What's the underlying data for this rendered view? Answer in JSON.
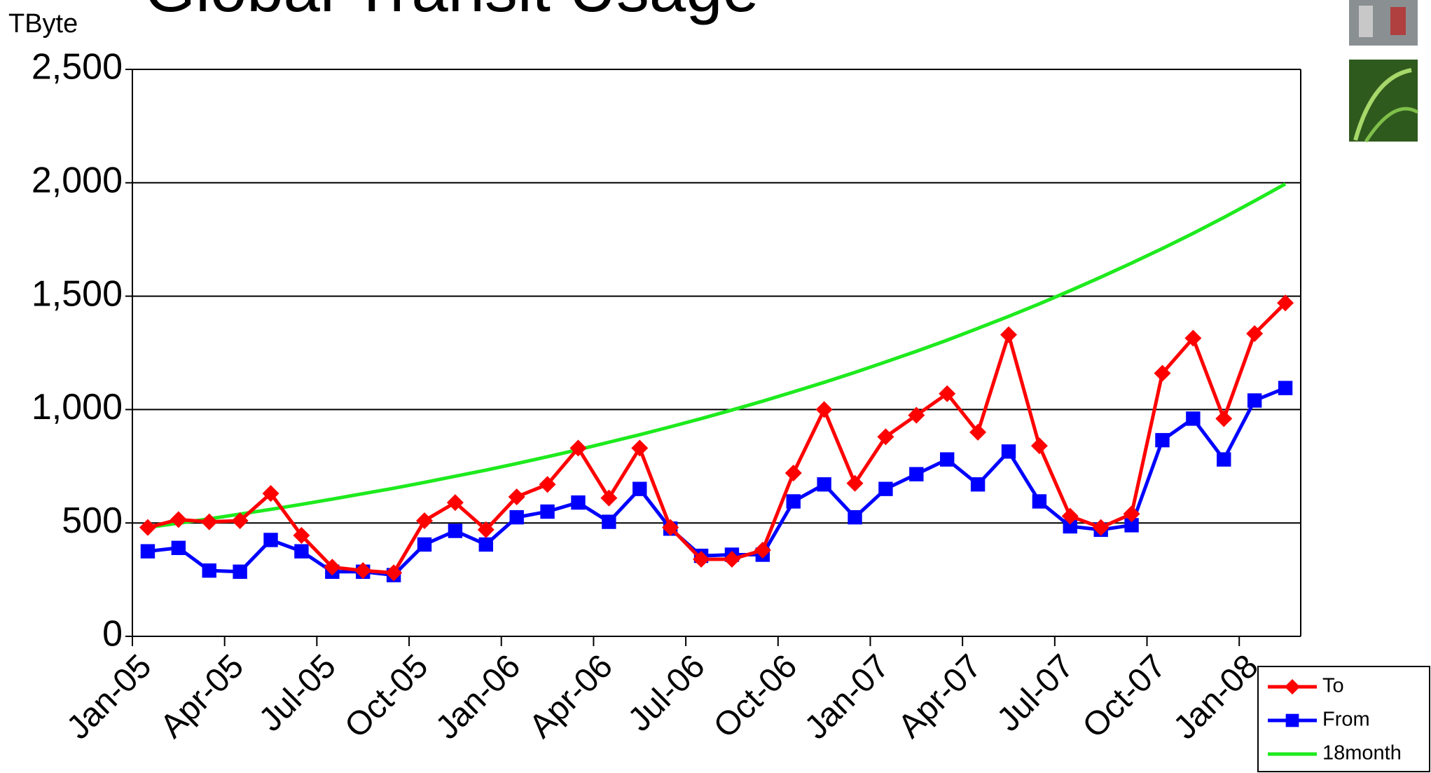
{
  "chart_data": {
    "type": "line",
    "title": "Global Transit Usage",
    "y_label": "TByte",
    "categories": [
      "Jan-05",
      null,
      null,
      "Apr-05",
      null,
      null,
      "Jul-05",
      null,
      null,
      "Oct-05",
      null,
      null,
      "Jan-06",
      null,
      null,
      "Apr-06",
      null,
      null,
      "Jul-06",
      null,
      null,
      "Oct-06",
      null,
      null,
      "Jan-07",
      null,
      null,
      "Apr-07",
      null,
      null,
      "Jul-07",
      null,
      null,
      "Oct-07",
      null,
      null,
      "Jan-08",
      null
    ],
    "series": [
      {
        "name": "To",
        "color": "#ff0000",
        "marker": "diamond",
        "values": [
          480,
          515,
          505,
          510,
          630,
          445,
          305,
          290,
          280,
          510,
          590,
          470,
          615,
          670,
          830,
          610,
          830,
          480,
          340,
          340,
          380,
          720,
          1000,
          675,
          880,
          975,
          1070,
          900,
          1330,
          840,
          530,
          480,
          540,
          1160,
          1315,
          960,
          1335,
          1470
        ]
      },
      {
        "name": "From",
        "color": "#0000ff",
        "marker": "square",
        "values": [
          375,
          390,
          290,
          285,
          425,
          375,
          285,
          285,
          270,
          405,
          465,
          405,
          525,
          550,
          590,
          505,
          650,
          475,
          355,
          360,
          360,
          595,
          670,
          525,
          650,
          715,
          780,
          670,
          815,
          595,
          485,
          470,
          490,
          865,
          960,
          780,
          1040,
          1095
        ]
      },
      {
        "name": "18month",
        "color": "#1eea1e",
        "marker": "none",
        "values": [
          480,
          499,
          518,
          539,
          560,
          582,
          605,
          629,
          653,
          679,
          706,
          733,
          762,
          792,
          823,
          856,
          889,
          924,
          960,
          998,
          1037,
          1078,
          1120,
          1164,
          1210,
          1257,
          1306,
          1358,
          1411,
          1466,
          1524,
          1584,
          1646,
          1710,
          1777,
          1847,
          1920,
          1995
        ]
      }
    ],
    "ylim": [
      0,
      2500
    ],
    "yticks": [
      {
        "value": 0,
        "label": "0"
      },
      {
        "value": 500,
        "label": "500"
      },
      {
        "value": 1000,
        "label": "1,000"
      },
      {
        "value": 1500,
        "label": "1,500"
      },
      {
        "value": 2000,
        "label": "2,000"
      },
      {
        "value": 2500,
        "label": "2,500"
      }
    ],
    "grid": true,
    "legend": "bottom-right"
  }
}
